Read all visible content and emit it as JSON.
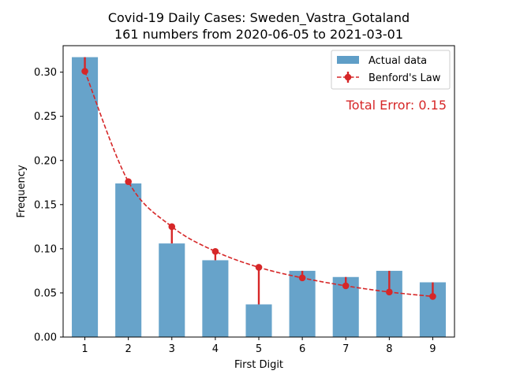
{
  "chart_data": {
    "type": "bar",
    "title_line1": "Covid-19 Daily Cases: Sweden_Vastra_Gotaland",
    "title_line2": "161 numbers from 2020-06-05 to 2021-03-01",
    "xlabel": "First Digit",
    "ylabel": "Frequency",
    "categories": [
      "1",
      "2",
      "3",
      "4",
      "5",
      "6",
      "7",
      "8",
      "9"
    ],
    "ylim": [
      0,
      0.33
    ],
    "yticks": [
      "0.00",
      "0.05",
      "0.10",
      "0.15",
      "0.20",
      "0.25",
      "0.30"
    ],
    "grid": false,
    "legend_position": "top-right",
    "series": [
      {
        "name": "Actual data",
        "kind": "bar",
        "color": "#5f9ec7",
        "values": [
          0.317,
          0.174,
          0.106,
          0.087,
          0.037,
          0.075,
          0.068,
          0.075,
          0.062
        ]
      },
      {
        "name": "Benford's Law",
        "kind": "line-with-errorbars",
        "color": "#d62728",
        "style": "dashed",
        "values": [
          0.301,
          0.176,
          0.125,
          0.097,
          0.079,
          0.067,
          0.058,
          0.051,
          0.046
        ]
      }
    ],
    "annotation": "Total Error: 0.15",
    "annotation_color": "#d62728",
    "annotation_position": "top-right"
  }
}
